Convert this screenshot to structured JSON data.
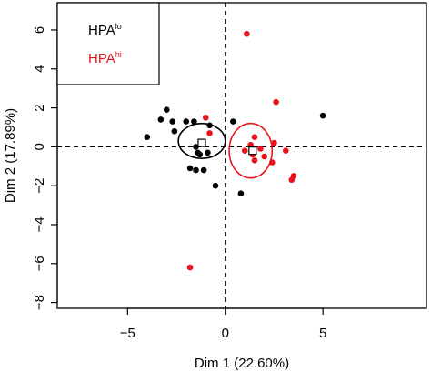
{
  "chart_data": {
    "type": "scatter",
    "title": "",
    "xlabel": "Dim 1 (22.60%)",
    "ylabel": "Dim 2 (17.89%)",
    "xlim": [
      -8.6,
      10.3
    ],
    "ylim": [
      -8.3,
      7.4
    ],
    "x_ticks": [
      -5,
      0,
      5
    ],
    "y_ticks": [
      -8,
      -6,
      -4,
      -2,
      0,
      2,
      4,
      6
    ],
    "x_tick_labels": [
      "−5",
      "0",
      "5"
    ],
    "y_tick_labels": [
      "−8",
      "−6",
      "−4",
      "−2",
      "0",
      "2",
      "4",
      "6"
    ],
    "grid": false,
    "reference_lines": {
      "x": 0,
      "y": 0,
      "style": "dashed"
    },
    "legend": {
      "placement": "top-left",
      "entries": [
        {
          "base": "HPA",
          "sup": "lo",
          "color": "#000000"
        },
        {
          "base": "HPA",
          "sup": "hi",
          "color": "#e8141c"
        }
      ]
    },
    "series": [
      {
        "color": "#000000",
        "points": [
          [
            -4.0,
            0.5
          ],
          [
            -3.3,
            1.4
          ],
          [
            -3.0,
            1.9
          ],
          [
            -2.7,
            1.3
          ],
          [
            -2.6,
            0.8
          ],
          [
            -2.0,
            1.3
          ],
          [
            -1.6,
            1.3
          ],
          [
            -1.5,
            0.0
          ],
          [
            -1.4,
            -0.3
          ],
          [
            -1.3,
            -0.4
          ],
          [
            -0.9,
            -0.3
          ],
          [
            -0.8,
            1.1
          ],
          [
            -1.8,
            -1.1
          ],
          [
            -1.5,
            -1.2
          ],
          [
            -1.1,
            -1.2
          ],
          [
            -0.5,
            -2.0
          ],
          [
            0.4,
            1.3
          ],
          [
            0.8,
            -2.4
          ],
          [
            5.0,
            1.6
          ]
        ],
        "centroid": [
          -1.2,
          0.2
        ],
        "ellipse": {
          "center": [
            -1.2,
            0.3
          ],
          "rx": 1.2,
          "ry": 0.9
        }
      },
      {
        "color": "#e8141c",
        "points": [
          [
            -1.0,
            1.5
          ],
          [
            -0.8,
            0.7
          ],
          [
            -1.8,
            -6.2
          ],
          [
            1.1,
            5.8
          ],
          [
            1.3,
            0.1
          ],
          [
            1.4,
            -0.4
          ],
          [
            1.5,
            0.5
          ],
          [
            1.5,
            -0.7
          ],
          [
            1.0,
            -0.2
          ],
          [
            1.8,
            -0.1
          ],
          [
            2.0,
            -0.5
          ],
          [
            2.4,
            -0.8
          ],
          [
            2.5,
            0.2
          ],
          [
            2.6,
            2.3
          ],
          [
            3.1,
            -0.2
          ],
          [
            3.4,
            -1.7
          ],
          [
            3.5,
            -1.5
          ]
        ],
        "centroid": [
          1.4,
          -0.2
        ],
        "ellipse": {
          "center": [
            1.3,
            -0.2
          ],
          "rx": 1.1,
          "ry": 1.4
        }
      }
    ]
  }
}
